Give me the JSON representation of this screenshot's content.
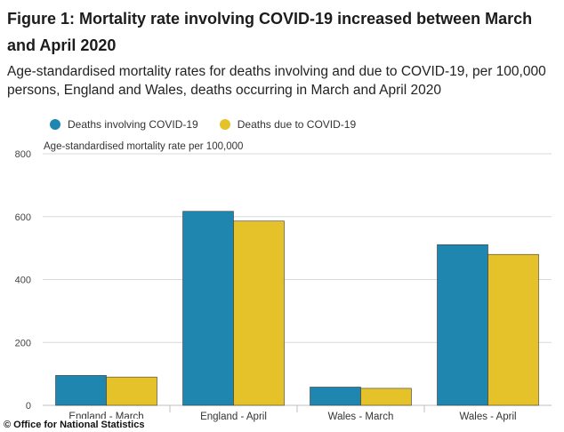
{
  "title": "Figure 1: Mortality rate involving COVID-19 increased between March and April 2020",
  "subtitle": "Age-standardised mortality rates for deaths involving and due to COVID-19, per 100,000 persons, England and Wales, deaths occurring in March and April 2020",
  "source": "© Office for National Statistics",
  "colors": {
    "involving": "#1f86b0",
    "due": "#e6c22a",
    "grid": "#d9d9d9",
    "axis": "#bfbfbf"
  },
  "chart_data": {
    "type": "bar",
    "categories": [
      "England - March",
      "England - April",
      "Wales - March",
      "Wales - April"
    ],
    "series": [
      {
        "name": "Deaths involving COVID-19",
        "values": [
          95,
          617,
          58,
          511
        ]
      },
      {
        "name": "Deaths due to COVID-19",
        "values": [
          90,
          586,
          54,
          480
        ]
      }
    ],
    "ylabel": "Age-standardised mortality rate per 100,000",
    "ylim": [
      0,
      800
    ],
    "yticks": [
      0,
      200,
      400,
      600,
      800
    ],
    "grid": true,
    "legend_position": "top-left"
  }
}
